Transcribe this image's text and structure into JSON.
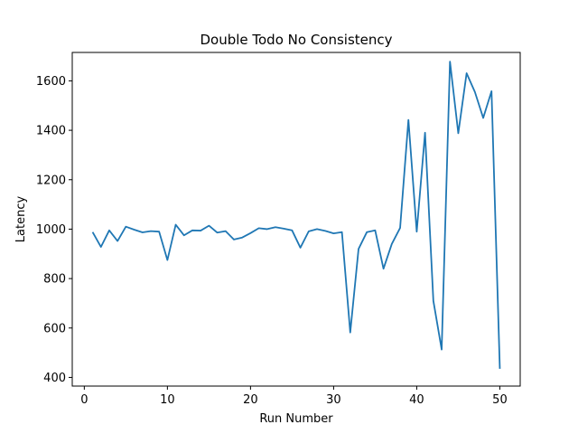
{
  "chart_data": {
    "type": "line",
    "title": "Double Todo No Consistency",
    "xlabel": "Run Number",
    "ylabel": "Latency",
    "xlim": [
      -1.45,
      52.45
    ],
    "ylim": [
      365,
      1715
    ],
    "xticks": [
      0,
      10,
      20,
      30,
      40,
      50
    ],
    "yticks": [
      400,
      600,
      800,
      1000,
      1200,
      1400,
      1600
    ],
    "grid": false,
    "series": [
      {
        "color": "#1f77b4",
        "x": [
          1,
          2,
          3,
          4,
          5,
          6,
          7,
          8,
          9,
          10,
          11,
          12,
          13,
          14,
          15,
          16,
          17,
          18,
          19,
          20,
          21,
          22,
          23,
          24,
          25,
          26,
          27,
          28,
          29,
          30,
          31,
          32,
          33,
          34,
          35,
          36,
          37,
          38,
          39,
          40,
          41,
          42,
          43,
          44,
          45,
          46,
          47,
          48,
          49,
          50
        ],
        "y": [
          988,
          928,
          995,
          952,
          1010,
          998,
          987,
          992,
          990,
          875,
          1018,
          975,
          995,
          994,
          1014,
          986,
          992,
          958,
          966,
          984,
          1004,
          1000,
          1008,
          1002,
          995,
          925,
          991,
          1000,
          993,
          983,
          988,
          582,
          920,
          988,
          995,
          840,
          940,
          1005,
          1442,
          990,
          1390,
          710,
          513,
          1678,
          1388,
          1631,
          1555,
          1450,
          1558,
          435
        ]
      }
    ]
  }
}
